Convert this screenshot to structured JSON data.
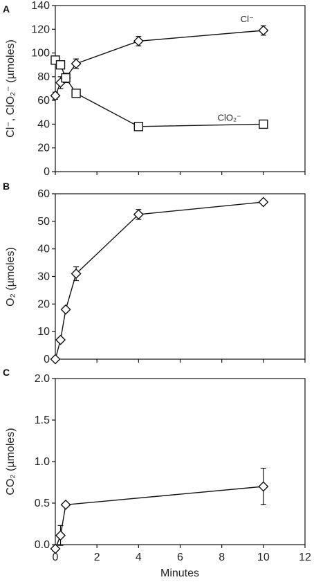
{
  "chart_data": [
    {
      "panel_label": "A",
      "type": "line",
      "ylabel": "Cl⁻, ClO₂⁻ (µmoles)",
      "ylim": [
        0,
        140
      ],
      "yticks": [
        0,
        20,
        40,
        60,
        80,
        100,
        120,
        140
      ],
      "xlim": [
        0,
        12
      ],
      "series": [
        {
          "name": "Cl⁻",
          "marker": "diamond",
          "x": [
            0,
            0.25,
            0.5,
            1,
            4,
            10
          ],
          "y": [
            64,
            75,
            79,
            91,
            110,
            119
          ],
          "err": [
            3,
            5,
            4,
            4,
            4,
            4
          ]
        },
        {
          "name": "ClO₂⁻",
          "marker": "square",
          "x": [
            0,
            0.25,
            0.5,
            1,
            4,
            10
          ],
          "y": [
            94,
            90,
            79,
            66,
            38,
            40
          ],
          "err": [
            2,
            2,
            2,
            1,
            2,
            1
          ]
        }
      ],
      "annotations": [
        {
          "text": "Cl⁻",
          "x": 8.9,
          "y": 126
        },
        {
          "text": "ClO₂⁻",
          "x": 7.8,
          "y": 43
        }
      ]
    },
    {
      "panel_label": "B",
      "type": "line",
      "ylabel": "O₂ (µmoles)",
      "ylim": [
        0,
        60
      ],
      "yticks": [
        0,
        10,
        20,
        30,
        40,
        50,
        60
      ],
      "xlim": [
        0,
        12
      ],
      "series": [
        {
          "name": "O₂",
          "marker": "diamond",
          "x": [
            0,
            0.25,
            0.5,
            1,
            4,
            10
          ],
          "y": [
            0,
            7,
            18,
            31,
            52.5,
            57
          ],
          "err": [
            0,
            0.5,
            0.5,
            2.5,
            1.8,
            0.4
          ]
        }
      ]
    },
    {
      "panel_label": "C",
      "type": "line",
      "ylabel": "CO₂ (µmoles)",
      "xlabel": "Minutes",
      "ylim": [
        0,
        2
      ],
      "yticks": [
        "0.0",
        "0.5",
        "1.0",
        "1.5",
        "2.0"
      ],
      "xlim": [
        0,
        12
      ],
      "xticks": [
        0,
        2,
        4,
        6,
        8,
        10,
        12
      ],
      "series": [
        {
          "name": "CO₂",
          "marker": "diamond",
          "x": [
            0,
            0.25,
            0.5,
            10
          ],
          "y": [
            -0.05,
            0.11,
            0.48,
            0.7
          ],
          "err": [
            0.03,
            0.12,
            0.02,
            0.22
          ]
        }
      ]
    }
  ]
}
